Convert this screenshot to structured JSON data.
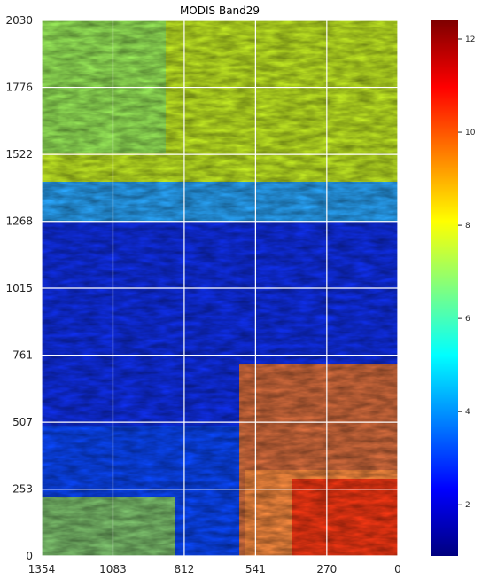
{
  "chart_data": {
    "type": "heatmap",
    "title": "MODIS Band29",
    "xlabel": "",
    "ylabel": "",
    "x_ticks": [
      1354,
      1083,
      812,
      541,
      270,
      0
    ],
    "y_ticks": [
      0,
      253,
      507,
      761,
      1015,
      1268,
      1522,
      1776,
      2030
    ],
    "xlim": [
      1354,
      0
    ],
    "ylim": [
      0,
      2030
    ],
    "grid": true,
    "colormap": "jet",
    "colorbar": {
      "ticks": [
        2,
        4,
        6,
        8,
        10,
        12
      ],
      "range": [
        0.9,
        12.4
      ]
    },
    "regions_approx": [
      {
        "description_value": 7.8,
        "y_from": 1268,
        "y_to": 2030
      },
      {
        "description_value": 2.2,
        "y_from": 253,
        "y_to": 1268
      },
      {
        "description_value": 10.5,
        "y_from": 0,
        "y_to": 500
      }
    ]
  }
}
